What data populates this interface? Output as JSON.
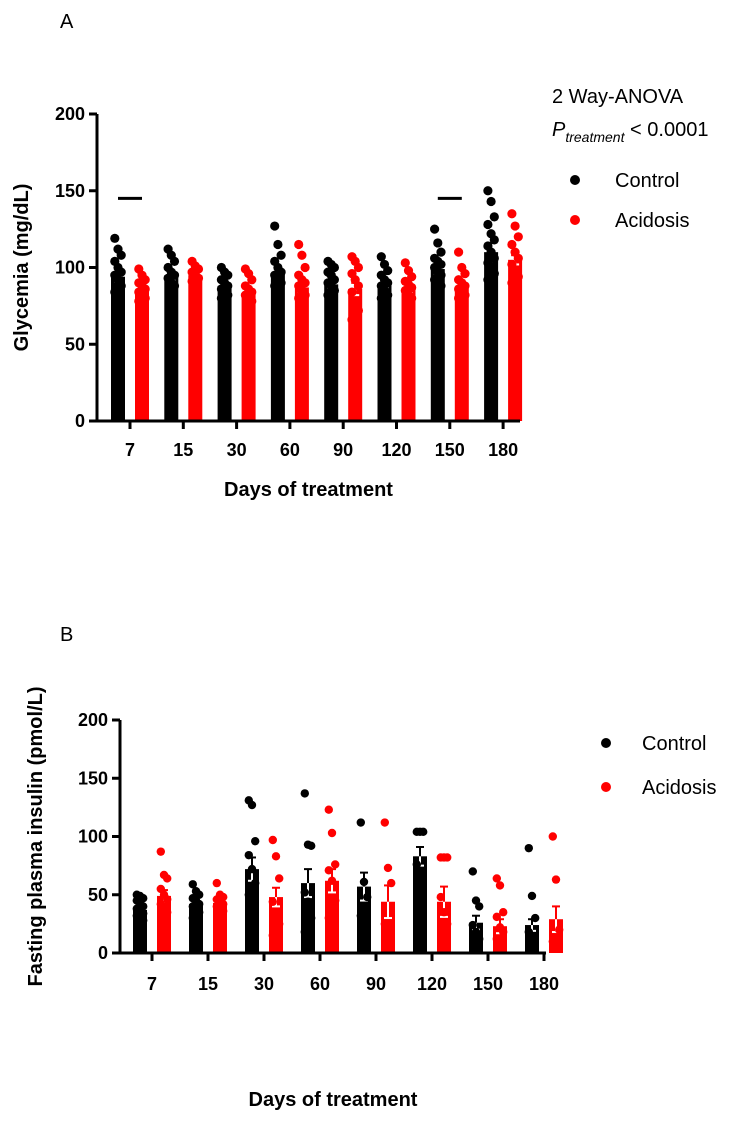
{
  "chart_data": [
    {
      "type": "bar",
      "panel": "A",
      "categories": [
        "7",
        "15",
        "30",
        "60",
        "90",
        "120",
        "150",
        "180"
      ],
      "xlabel": "Days of treatment",
      "ylabel": "Glycemia (mg/dL)",
      "ylim": [
        0,
        200
      ],
      "yticks": [
        "0",
        "50",
        "100",
        "150",
        "200"
      ],
      "legend": "top-right",
      "annotation": {
        "line1": "2 Way-ANOVA",
        "p": "P",
        "sub": "treatment",
        "rest": " < 0.0001"
      },
      "significance_categories": [
        "7",
        "150"
      ],
      "significance_y": 145,
      "series": [
        {
          "name": "Control",
          "color": "#000000",
          "values": [
            94,
            95,
            88,
            96,
            89,
            89,
            99,
            110
          ],
          "sem": [
            3,
            3,
            2,
            4,
            2,
            2,
            3,
            6
          ],
          "points": [
            [
              119,
              112,
              108,
              104,
              100,
              97,
              95,
              92,
              88,
              84,
              80
            ],
            [
              112,
              108,
              104,
              100,
              97,
              95,
              93,
              90,
              88
            ],
            [
              100,
              97,
              95,
              92,
              90,
              88,
              86,
              84,
              82,
              80
            ],
            [
              127,
              115,
              108,
              104,
              100,
              97,
              95,
              92,
              90,
              88,
              85
            ],
            [
              104,
              102,
              100,
              97,
              95,
              92,
              90,
              88,
              85,
              82
            ],
            [
              107,
              102,
              98,
              95,
              92,
              90,
              88,
              85,
              82,
              80
            ],
            [
              125,
              116,
              110,
              106,
              104,
              102,
              100,
              97,
              95,
              92,
              90,
              88
            ],
            [
              150,
              143,
              133,
              128,
              122,
              118,
              114,
              110,
              106,
              103,
              100,
              96,
              92
            ]
          ]
        },
        {
          "name": "Acidosis",
          "color": "#ff0000",
          "values": [
            85,
            95,
            83,
            87,
            86,
            86,
            87,
            105
          ],
          "sem": [
            2,
            2,
            2,
            3,
            4,
            2,
            3,
            3
          ],
          "points": [
            [
              99,
              95,
              92,
              90,
              88,
              86,
              84,
              82,
              80,
              78
            ],
            [
              104,
              101,
              99,
              97,
              95,
              93,
              91
            ],
            [
              99,
              96,
              92,
              88,
              86,
              84,
              82,
              80,
              78
            ],
            [
              115,
              108,
              100,
              95,
              92,
              90,
              88,
              85,
              82,
              80
            ],
            [
              107,
              104,
              100,
              96,
              92,
              88,
              84,
              78,
              72,
              66
            ],
            [
              103,
              98,
              94,
              91,
              89,
              87,
              85,
              82,
              80
            ],
            [
              110,
              100,
              96,
              92,
              90,
              88,
              86,
              84,
              82,
              80,
              78
            ],
            [
              135,
              127,
              120,
              115,
              110,
              106,
              102,
              98,
              94,
              90
            ]
          ]
        }
      ]
    },
    {
      "type": "bar",
      "panel": "B",
      "categories": [
        "7",
        "15",
        "30",
        "60",
        "90",
        "120",
        "150",
        "180"
      ],
      "xlabel": "Days of treatment",
      "ylabel": "Fasting plasma insulin (pmol/L)",
      "ylim": [
        0,
        200
      ],
      "yticks": [
        "0",
        "50",
        "100",
        "150",
        "200"
      ],
      "legend": "top-right",
      "series": [
        {
          "name": "Control",
          "color": "#000000",
          "values": [
            37,
            42,
            72,
            60,
            57,
            83,
            26,
            24
          ],
          "sem": [
            3,
            3,
            10,
            12,
            12,
            8,
            6,
            5
          ],
          "points": [
            [
              50,
              49,
              47,
              45,
              43,
              40,
              38,
              36,
              34,
              32,
              30,
              28
            ],
            [
              59,
              53,
              50,
              47,
              45,
              42,
              40,
              38,
              35,
              30
            ],
            [
              131,
              127,
              96,
              84,
              72,
              60,
              50,
              38
            ],
            [
              137,
              93,
              92,
              52,
              44,
              30,
              18,
              14
            ],
            [
              112,
              61,
              48,
              32,
              23
            ],
            [
              104,
              104,
              104,
              76,
              62
            ],
            [
              70,
              45,
              40,
              24,
              18,
              12
            ],
            [
              90,
              49,
              30,
              18,
              10
            ]
          ]
        },
        {
          "name": "Acidosis",
          "color": "#ff0000",
          "values": [
            49,
            43,
            48,
            62,
            44,
            44,
            23,
            29
          ],
          "sem": [
            5,
            4,
            8,
            10,
            14,
            13,
            6,
            11
          ],
          "points": [
            [
              87,
              67,
              64,
              55,
              50,
              46,
              42,
              38,
              35
            ],
            [
              60,
              50,
              48,
              46,
              44,
              42,
              40,
              38,
              36
            ],
            [
              97,
              83,
              64,
              44,
              35,
              25,
              15
            ],
            [
              123,
              103,
              76,
              71,
              62,
              45,
              30,
              15
            ],
            [
              112,
              73,
              60,
              25,
              12
            ],
            [
              82,
              82,
              82,
              48,
              35,
              25
            ],
            [
              64,
              58,
              35,
              31,
              22,
              18,
              12,
              8
            ],
            [
              100,
              63,
              20,
              10
            ]
          ]
        }
      ]
    }
  ]
}
